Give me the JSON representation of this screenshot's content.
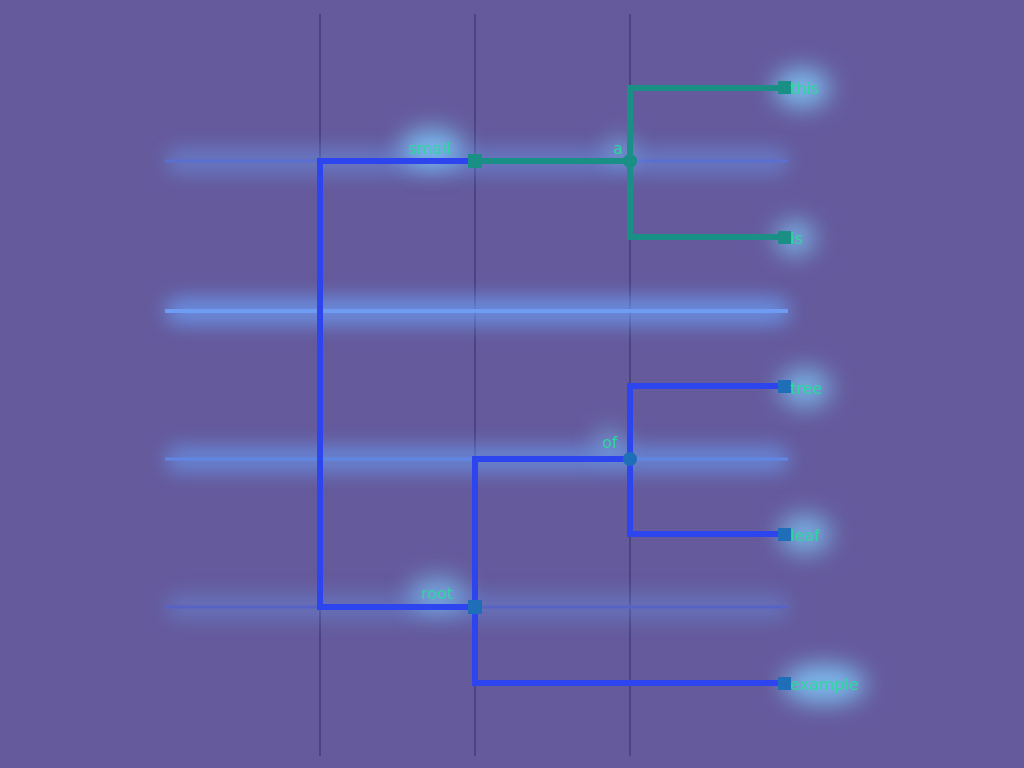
{
  "diagram": {
    "type": "tree",
    "colors": {
      "background": "#655a9c",
      "gridline": "#4a4480",
      "branch_blue": "#2c45ee",
      "branch_teal": "#1a8f86",
      "glow": "#6aa6ff",
      "label": "#2fd7a0"
    },
    "nodes": {
      "small": "small",
      "a": "a",
      "of": "of",
      "root": "root",
      "this": "this",
      "is": "is",
      "tree": "tree",
      "leaf": "leaf",
      "example": "example"
    }
  }
}
